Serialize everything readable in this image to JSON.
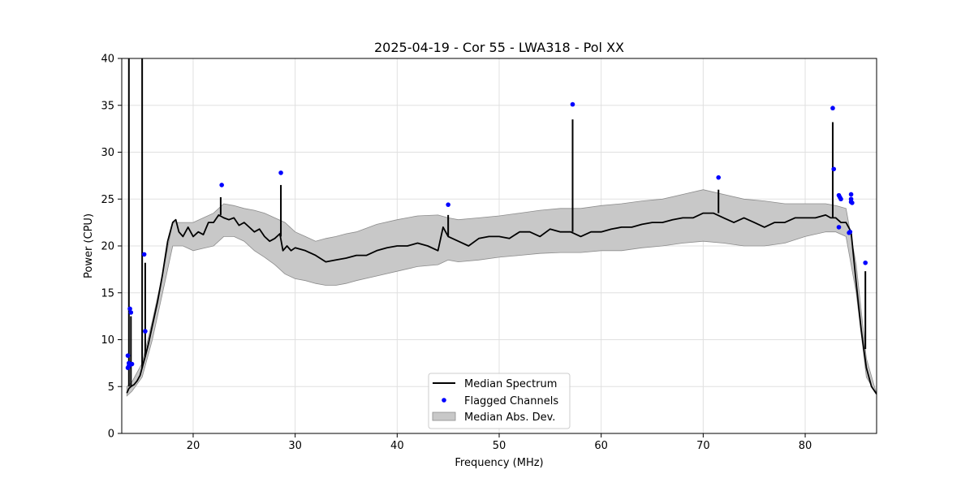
{
  "chart_data": {
    "type": "line",
    "title": "2025-04-19 - Cor 55 - LWA318 - Pol XX",
    "xlabel": "Frequency (MHz)",
    "ylabel": "Power (CPU)",
    "xlim": [
      13,
      87
    ],
    "ylim": [
      0,
      40
    ],
    "xticks": [
      20,
      30,
      40,
      50,
      60,
      70,
      80
    ],
    "yticks": [
      0,
      5,
      10,
      15,
      20,
      25,
      30,
      35,
      40
    ],
    "grid": true,
    "legend_position": "bottom-center",
    "legend": [
      "Median Spectrum",
      "Flagged Channels",
      "Median Abs. Dev."
    ],
    "colors": {
      "median": "#000000",
      "flagged": "#0000ff",
      "mad_fill": "#c8c8c8",
      "mad_edge": "#8c8c8c",
      "grid": "#e0e0e0"
    },
    "series": [
      {
        "name": "Median Spectrum",
        "x": [
          13.5,
          13.7,
          13.9,
          14.2,
          14.5,
          14.8,
          15.0,
          15.3,
          15.6,
          16.0,
          16.5,
          17.0,
          17.5,
          18.0,
          18.3,
          18.6,
          19.0,
          19.5,
          20.0,
          20.5,
          21.0,
          21.5,
          22.0,
          22.5,
          23.0,
          23.5,
          24.0,
          24.5,
          25.0,
          25.5,
          26.0,
          26.5,
          27.0,
          27.5,
          28.0,
          28.5,
          28.8,
          29.2,
          29.6,
          30.0,
          31.0,
          32.0,
          33.0,
          34.0,
          35.0,
          36.0,
          37.0,
          38.0,
          39.0,
          40.0,
          41.0,
          42.0,
          43.0,
          44.0,
          44.5,
          45.0,
          46.0,
          47.0,
          48.0,
          49.0,
          50.0,
          51.0,
          52.0,
          53.0,
          54.0,
          55.0,
          56.0,
          57.0,
          58.0,
          59.0,
          60.0,
          61.0,
          62.0,
          63.0,
          64.0,
          65.0,
          66.0,
          67.0,
          68.0,
          69.0,
          70.0,
          71.0,
          72.0,
          73.0,
          74.0,
          75.0,
          76.0,
          77.0,
          78.0,
          79.0,
          80.0,
          81.0,
          82.0,
          82.5,
          83.0,
          83.5,
          84.0,
          84.5,
          85.0,
          85.5,
          86.0,
          86.5,
          87.0
        ],
        "values": [
          4.3,
          4.8,
          5.0,
          5.2,
          5.6,
          6.2,
          7.0,
          8.2,
          9.5,
          11.5,
          14.0,
          17.0,
          20.5,
          22.5,
          22.8,
          21.5,
          21.0,
          22.0,
          21.0,
          21.5,
          21.2,
          22.5,
          22.5,
          23.3,
          23.0,
          22.8,
          23.0,
          22.2,
          22.5,
          22.0,
          21.5,
          21.8,
          21.0,
          20.5,
          20.8,
          21.3,
          19.5,
          20.0,
          19.5,
          19.8,
          19.5,
          19.0,
          18.3,
          18.5,
          18.7,
          19.0,
          19.0,
          19.5,
          19.8,
          20.0,
          20.0,
          20.3,
          20.0,
          19.5,
          22.0,
          21.0,
          20.5,
          20.0,
          20.8,
          21.0,
          21.0,
          20.8,
          21.5,
          21.5,
          21.0,
          21.8,
          21.5,
          21.5,
          21.0,
          21.5,
          21.5,
          21.8,
          22.0,
          22.0,
          22.3,
          22.5,
          22.5,
          22.8,
          23.0,
          23.0,
          23.5,
          23.5,
          23.0,
          22.5,
          23.0,
          22.5,
          22.0,
          22.5,
          22.5,
          23.0,
          23.0,
          23.0,
          23.3,
          23.0,
          23.0,
          22.5,
          22.5,
          21.5,
          16.0,
          11.0,
          7.0,
          5.0,
          4.2
        ]
      },
      {
        "name": "Median Abs. Dev.",
        "x": [
          13.5,
          14.0,
          15.0,
          16.0,
          17.0,
          18.0,
          19.0,
          20.0,
          22.0,
          23.0,
          24.0,
          25.0,
          26.0,
          27.0,
          28.0,
          29.0,
          30.0,
          31.0,
          32.0,
          33.0,
          34.0,
          35.0,
          36.0,
          38.0,
          40.0,
          42.0,
          44.0,
          45.0,
          46.0,
          48.0,
          50.0,
          52.0,
          54.0,
          56.0,
          58.0,
          60.0,
          62.0,
          64.0,
          66.0,
          68.0,
          70.0,
          72.0,
          74.0,
          76.0,
          78.0,
          80.0,
          82.0,
          83.0,
          84.0,
          85.0,
          86.0,
          87.0
        ],
        "upper": [
          5.0,
          5.5,
          7.5,
          12.0,
          17.0,
          22.5,
          22.5,
          22.5,
          23.5,
          24.5,
          24.3,
          24.0,
          23.8,
          23.5,
          23.0,
          22.5,
          21.5,
          21.0,
          20.5,
          20.8,
          21.0,
          21.3,
          21.5,
          22.3,
          22.8,
          23.2,
          23.3,
          23.0,
          22.8,
          23.0,
          23.2,
          23.5,
          23.8,
          24.0,
          24.0,
          24.3,
          24.5,
          24.8,
          25.0,
          25.5,
          26.0,
          25.5,
          25.0,
          24.8,
          24.5,
          24.5,
          24.5,
          24.3,
          24.0,
          18.0,
          8.0,
          4.2
        ],
        "lower": [
          4.0,
          4.5,
          6.0,
          10.0,
          15.0,
          20.0,
          20.0,
          19.5,
          20.0,
          21.0,
          21.0,
          20.5,
          19.5,
          18.8,
          18.0,
          17.0,
          16.5,
          16.3,
          16.0,
          15.8,
          15.8,
          16.0,
          16.3,
          16.8,
          17.3,
          17.8,
          18.0,
          18.5,
          18.3,
          18.5,
          18.8,
          19.0,
          19.2,
          19.3,
          19.3,
          19.5,
          19.5,
          19.8,
          20.0,
          20.3,
          20.5,
          20.3,
          20.0,
          20.0,
          20.3,
          21.0,
          21.5,
          21.5,
          21.0,
          15.0,
          6.0,
          4.2
        ]
      }
    ],
    "spikes": [
      {
        "x": 13.7,
        "base": 5.0,
        "peak": 40.0
      },
      {
        "x": 13.9,
        "base": 5.0,
        "peak": 12.5
      },
      {
        "x": 15.0,
        "base": 7.0,
        "peak": 40.0
      },
      {
        "x": 15.3,
        "base": 8.2,
        "peak": 18.2
      },
      {
        "x": 22.7,
        "base": 23.3,
        "peak": 25.2
      },
      {
        "x": 28.6,
        "base": 21.0,
        "peak": 26.5
      },
      {
        "x": 45.0,
        "base": 21.0,
        "peak": 23.3
      },
      {
        "x": 57.2,
        "base": 21.5,
        "peak": 33.5
      },
      {
        "x": 71.5,
        "base": 23.5,
        "peak": 26.0
      },
      {
        "x": 82.7,
        "base": 23.0,
        "peak": 33.2
      },
      {
        "x": 85.9,
        "base": 9.0,
        "peak": 17.3
      }
    ],
    "flagged": {
      "name": "Flagged Channels",
      "x": [
        13.6,
        13.7,
        13.8,
        13.9,
        14.0,
        13.6,
        13.7,
        15.2,
        15.3,
        22.8,
        28.6,
        45.0,
        57.2,
        71.5,
        82.7,
        82.8,
        83.3,
        83.4,
        83.5,
        83.3,
        84.3,
        84.4,
        84.5,
        84.5,
        84.5,
        84.6,
        85.9
      ],
      "y": [
        8.3,
        7.5,
        13.3,
        12.9,
        7.4,
        7.0,
        7.2,
        19.1,
        10.9,
        26.5,
        27.8,
        24.4,
        35.1,
        27.3,
        34.7,
        28.2,
        25.4,
        25.2,
        25.0,
        22.0,
        21.4,
        21.5,
        25.5,
        25.0,
        24.7,
        24.6,
        18.2
      ]
    }
  }
}
